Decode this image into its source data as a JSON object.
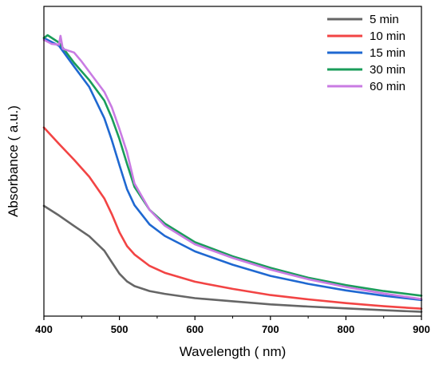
{
  "chart_data": {
    "type": "line",
    "title": "",
    "xlabel": "Wavelength ( nm)",
    "ylabel": "Absorbance ( a.u.)",
    "xlim": [
      400,
      900
    ],
    "ylim": [
      0,
      1
    ],
    "x_ticks": [
      400,
      500,
      600,
      700,
      800,
      900
    ],
    "y_ticks_shown": false,
    "grid": false,
    "legend_position": "top-right",
    "series": [
      {
        "name": "5 min",
        "color": "#666666",
        "x": [
          400,
          420,
          440,
          460,
          480,
          490,
          500,
          510,
          520,
          540,
          560,
          600,
          650,
          700,
          750,
          800,
          850,
          900
        ],
        "y": [
          0.356,
          0.325,
          0.291,
          0.258,
          0.211,
          0.174,
          0.137,
          0.112,
          0.097,
          0.081,
          0.072,
          0.058,
          0.048,
          0.038,
          0.031,
          0.025,
          0.019,
          0.014
        ]
      },
      {
        "name": "10 min",
        "color": "#f24444",
        "x": [
          400,
          420,
          440,
          460,
          480,
          490,
          500,
          510,
          520,
          540,
          560,
          600,
          650,
          700,
          750,
          800,
          850,
          900
        ],
        "y": [
          0.609,
          0.556,
          0.505,
          0.45,
          0.38,
          0.329,
          0.271,
          0.226,
          0.199,
          0.162,
          0.14,
          0.111,
          0.088,
          0.068,
          0.054,
          0.042,
          0.032,
          0.024
        ]
      },
      {
        "name": "15 min",
        "color": "#1f68d1",
        "x": [
          400,
          420,
          440,
          460,
          480,
          490,
          500,
          510,
          520,
          540,
          560,
          600,
          650,
          700,
          750,
          800,
          850,
          900
        ],
        "y": [
          0.898,
          0.873,
          0.806,
          0.74,
          0.639,
          0.568,
          0.488,
          0.41,
          0.358,
          0.296,
          0.259,
          0.209,
          0.166,
          0.13,
          0.104,
          0.083,
          0.066,
          0.052
        ]
      },
      {
        "name": "30 min",
        "color": "#1a9d5a",
        "x": [
          400,
          405,
          420,
          440,
          460,
          480,
          490,
          500,
          510,
          520,
          540,
          560,
          600,
          650,
          700,
          750,
          800,
          850,
          900
        ],
        "y": [
          0.898,
          0.907,
          0.883,
          0.818,
          0.762,
          0.696,
          0.64,
          0.572,
          0.492,
          0.417,
          0.343,
          0.299,
          0.239,
          0.193,
          0.156,
          0.124,
          0.1,
          0.081,
          0.066
        ]
      },
      {
        "name": "60 min",
        "color": "#c97be3",
        "x": [
          400,
          410,
          420,
          422,
          425,
          440,
          450,
          460,
          480,
          490,
          500,
          510,
          520,
          540,
          560,
          600,
          650,
          700,
          750,
          800,
          850,
          900
        ],
        "y": [
          0.892,
          0.879,
          0.876,
          0.905,
          0.863,
          0.851,
          0.822,
          0.789,
          0.724,
          0.674,
          0.604,
          0.529,
          0.428,
          0.343,
          0.292,
          0.232,
          0.188,
          0.15,
          0.119,
          0.094,
          0.073,
          0.055
        ]
      }
    ]
  }
}
